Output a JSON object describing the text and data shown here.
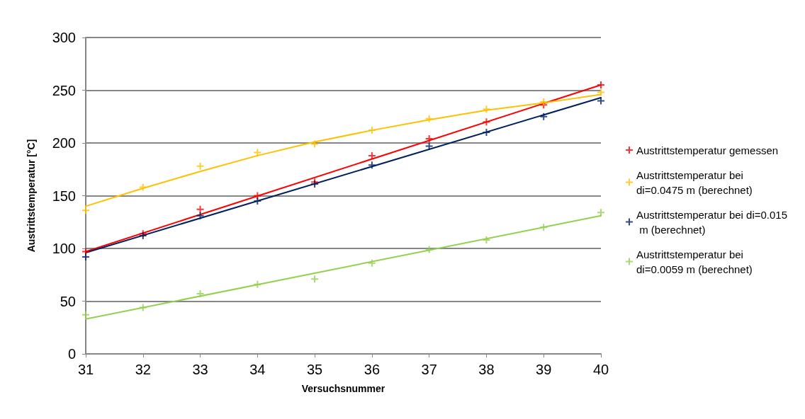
{
  "chart_data": {
    "type": "scatter",
    "xlabel": "Versuchsnummer",
    "ylabel": "Austrittstemperatur [°C]",
    "xlim": [
      31,
      40
    ],
    "xticks": [
      31,
      32,
      33,
      34,
      35,
      36,
      37,
      38,
      39,
      40
    ],
    "ylim": [
      0,
      300
    ],
    "yticks": [
      0,
      50,
      100,
      150,
      200,
      250,
      300
    ],
    "grid": "y",
    "legend": "right",
    "marker": "cross",
    "x": [
      31,
      32,
      33,
      34,
      35,
      36,
      37,
      38,
      39,
      40
    ],
    "series": [
      {
        "name": "Austrittstemperatur gemessen",
        "color": "#ff0000",
        "values": [
          97,
          114,
          137,
          150,
          163,
          188,
          204,
          220,
          236,
          255
        ]
      },
      {
        "name": "Austrittstemperatur bei di=0.0475 m (berechnet)",
        "color": "#ffc000",
        "values": [
          136,
          158,
          178,
          191,
          199,
          212,
          223,
          232,
          239,
          248
        ]
      },
      {
        "name": "Austrittstemperatur bei di=0.015 m (berechnet)",
        "color": "#002060",
        "values": [
          92,
          112,
          131,
          145,
          161,
          179,
          197,
          210,
          225,
          240
        ]
      },
      {
        "name": "Austrittstemperatur bei di=0.0059 m (berechnet)",
        "color": "#92d050",
        "values": [
          37,
          44,
          57,
          66,
          71,
          86,
          99,
          108,
          120,
          134
        ]
      },
      {
        "type": "line",
        "color": "#ff0000",
        "marker": "none",
        "x": [
          31,
          40
        ],
        "values": [
          97,
          255
        ]
      },
      {
        "type": "line",
        "color": "#ffc000",
        "marker": "none",
        "x": [
          31,
          32,
          33,
          34,
          35,
          36,
          37,
          38,
          39,
          40
        ],
        "values": [
          140,
          157,
          173,
          188,
          201,
          212,
          222,
          231,
          238,
          246
        ]
      },
      {
        "type": "line",
        "color": "#002060",
        "marker": "none",
        "x": [
          31,
          40
        ],
        "values": [
          96,
          243
        ]
      },
      {
        "type": "line",
        "color": "#92d050",
        "marker": "none",
        "x": [
          31,
          40
        ],
        "values": [
          33,
          131
        ]
      }
    ]
  }
}
